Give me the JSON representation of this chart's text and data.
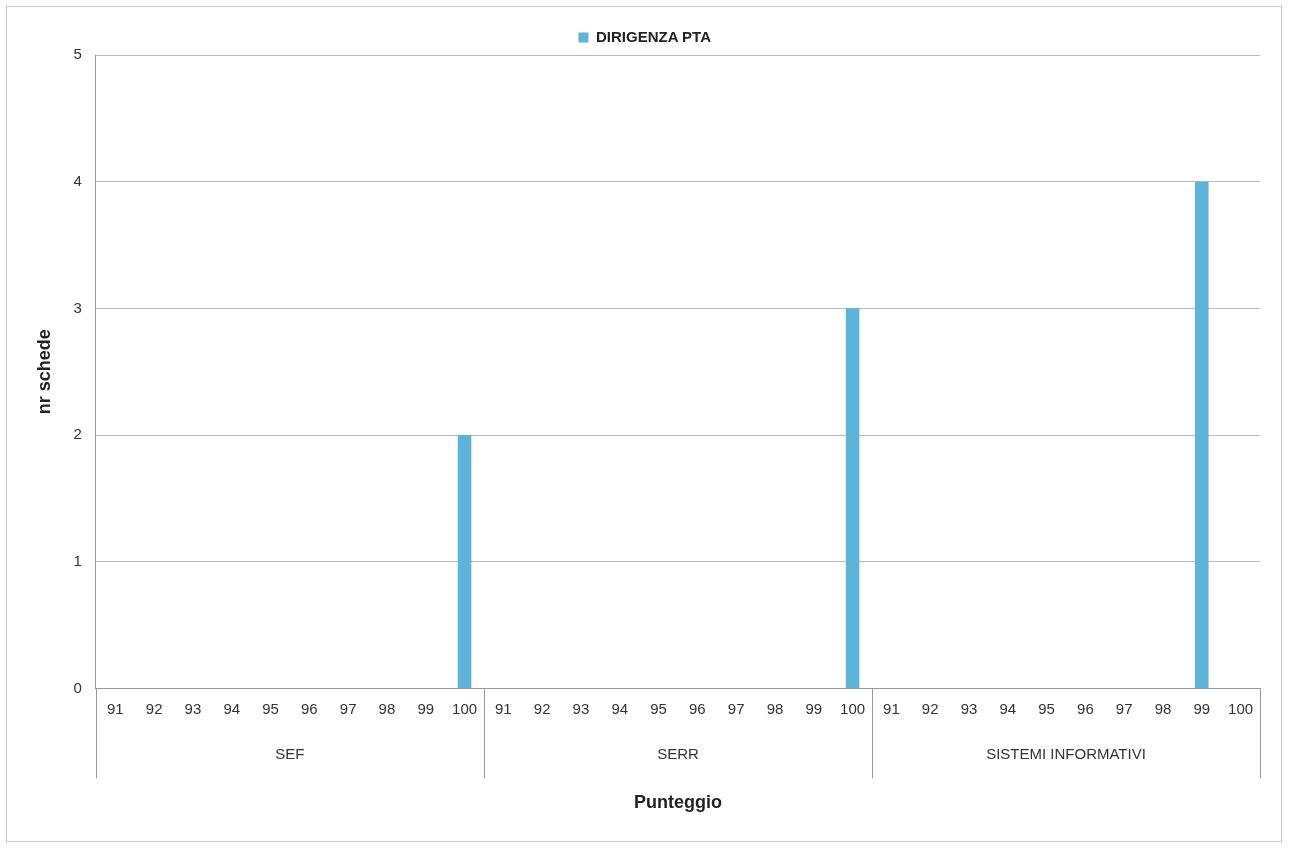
{
  "chart_data": {
    "type": "bar",
    "xlabel": "Punteggio",
    "ylabel": "nr schede",
    "categories": [
      "91",
      "92",
      "93",
      "94",
      "95",
      "96",
      "97",
      "98",
      "99",
      "100",
      "91",
      "92",
      "93",
      "94",
      "95",
      "96",
      "97",
      "98",
      "99",
      "100",
      "91",
      "92",
      "93",
      "94",
      "95",
      "96",
      "97",
      "98",
      "99",
      "100"
    ],
    "series": [
      {
        "name": "DIRIGENZA PTA",
        "color": "#5db3d9",
        "values": [
          0,
          0,
          0,
          0,
          0,
          0,
          0,
          0,
          0,
          2,
          0,
          0,
          0,
          0,
          0,
          0,
          0,
          0,
          0,
          3,
          0,
          0,
          0,
          0,
          0,
          0,
          0,
          0,
          4,
          0
        ]
      }
    ],
    "ylim": [
      0,
      5
    ],
    "yticks": [
      0,
      1,
      2,
      3,
      4,
      5
    ],
    "grid": "y",
    "legend": "top",
    "annotations": [
      "SEF",
      "SERR",
      "SISTEMI INFORMATIVI"
    ]
  }
}
